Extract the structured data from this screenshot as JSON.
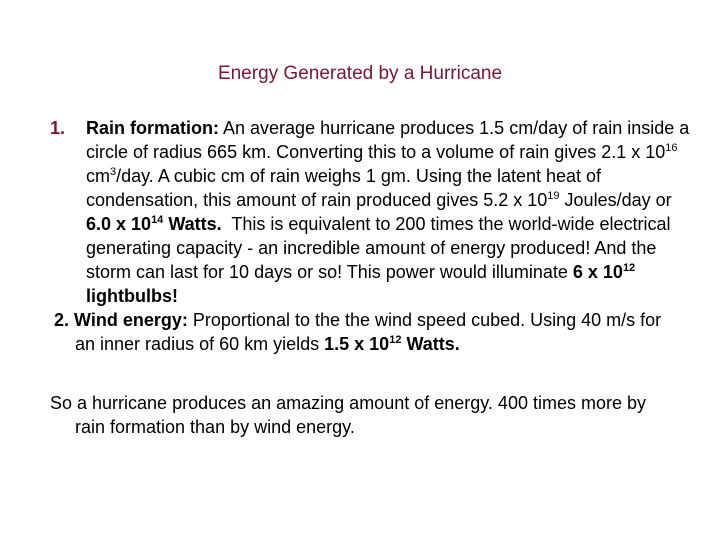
{
  "title": "Energy Generated by a Hurricane",
  "items": [
    {
      "number": "1.",
      "label": "Rain formation:",
      "runs": [
        " An average hurricane produces 1.5 cm/day of rain inside a circle of radius 665 km. Converting this to a volume of rain gives 2.1 x 10",
        "16",
        " cm",
        "3",
        "/day. A cubic cm of rain weighs 1 gm. Using the latent heat of condensation, this amount of rain produced gives 5.2 x 10",
        "19",
        " Joules/day or ",
        "6.0 x 10",
        "14",
        " Watts.",
        "  This is equivalent to 200 times the world-wide electrical generating capacity - an incredible amount of energy produced! And the storm can last for 10 days or so! This power would illuminate ",
        "6 x 10",
        "12",
        " lightbulbs!"
      ]
    },
    {
      "number": "2.",
      "label": "Wind energy:",
      "runs": [
        " Proportional to the the wind speed cubed.  Using 40 m/s for an inner radius of 60 km yields ",
        "1.5 x 10",
        "12",
        " Watts."
      ]
    }
  ],
  "conclusion": "So a hurricane produces an amazing amount of energy.  400 times more by rain formation than by wind energy."
}
